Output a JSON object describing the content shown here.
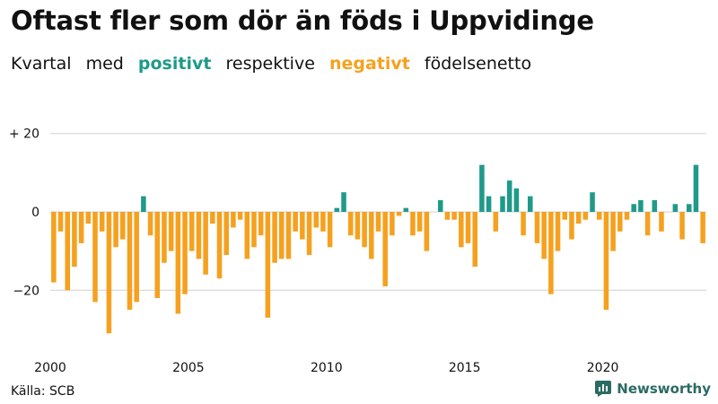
{
  "header": {
    "title": "Oftast fler som dör än föds i Uppvidinge",
    "subtitle_parts": [
      "Kvartal",
      "med",
      "positivt",
      "respektive",
      "negativt",
      "födelsenetto"
    ]
  },
  "footer": {
    "source": "Källa: SCB",
    "brand": "Newsworthy"
  },
  "colors": {
    "positive": "#1f9a8a",
    "negative": "#f5a11f",
    "grid": "#d0d0d0",
    "brand": "#2a6b63"
  },
  "chart_data": {
    "type": "bar",
    "title": "Oftast fler som dör än föds i Uppvidinge",
    "subtitle": "Kvartal med positivt respektive negativt födelsenetto",
    "xlabel": "",
    "ylabel": "",
    "ylim": [
      -33,
      22
    ],
    "y_ticks": [
      {
        "value": 20,
        "label": "+ 20"
      },
      {
        "value": 0,
        "label": "0"
      },
      {
        "value": -20,
        "label": "−20"
      }
    ],
    "x_ticks": [
      {
        "value": 2000,
        "label": "2000"
      },
      {
        "value": 2005,
        "label": "2005"
      },
      {
        "value": 2010,
        "label": "2010"
      },
      {
        "value": 2015,
        "label": "2015"
      },
      {
        "value": 2020,
        "label": "2020"
      }
    ],
    "start_year": 2000,
    "periods_per_year": 4,
    "values": [
      -18,
      -5,
      -20,
      -14,
      -8,
      -3,
      -23,
      -5,
      -31,
      -9,
      -7,
      -25,
      -23,
      4,
      -6,
      -22,
      -13,
      -10,
      -26,
      -21,
      -10,
      -12,
      -16,
      -3,
      -17,
      -11,
      -4,
      -2,
      -12,
      -9,
      -6,
      -27,
      -13,
      -12,
      -12,
      -5,
      -7,
      -11,
      -4,
      -5,
      -9,
      1,
      5,
      -6,
      -7,
      -9,
      -12,
      -5,
      -19,
      -6,
      -1,
      1,
      -6,
      -5,
      -10,
      0,
      3,
      -2,
      -2,
      -9,
      -8,
      -14,
      12,
      4,
      -5,
      4,
      8,
      6,
      -6,
      4,
      -8,
      -12,
      -21,
      -10,
      -2,
      -7,
      -3,
      -2,
      5,
      -2,
      -25,
      -10,
      -5,
      -2,
      2,
      3,
      -6,
      3,
      -5,
      0,
      2,
      -7,
      2,
      12,
      -8
    ]
  }
}
